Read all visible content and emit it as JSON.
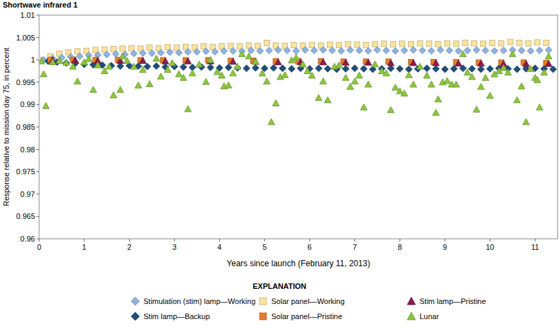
{
  "chart_data": {
    "type": "scatter",
    "title": "Shortwave infrared 1",
    "x_label": "Years since launch (February 11, 2013)",
    "y_label": "Response relative to mission day 75, in percent",
    "legend_title": "EXPLANATION",
    "legend": "bottom",
    "grid": false,
    "xlim": [
      0,
      11.5
    ],
    "xticks": [
      0,
      1,
      2,
      3,
      4,
      5,
      6,
      7,
      8,
      9,
      10,
      11
    ],
    "ylim": [
      0.96,
      1.01
    ],
    "yticks": [
      0.96,
      0.965,
      0.97,
      0.975,
      0.98,
      0.985,
      0.99,
      0.995,
      1,
      1.005,
      1.01
    ],
    "series": [
      {
        "name": "Stimulation (stim) lamp—Working",
        "color": "#8fb3e0",
        "marker": "diamond",
        "x": [
          0.1,
          0.3,
          0.5,
          0.7,
          0.9,
          1.1,
          1.3,
          1.5,
          1.7,
          1.9,
          2.1,
          2.3,
          2.5,
          2.7,
          2.9,
          3.1,
          3.3,
          3.5,
          3.7,
          3.9,
          4.1,
          4.3,
          4.5,
          4.7,
          4.9,
          5.1,
          5.3,
          5.5,
          5.7,
          5.9,
          6.1,
          6.3,
          6.5,
          6.7,
          6.9,
          7.1,
          7.3,
          7.5,
          7.7,
          7.9,
          8.1,
          8.3,
          8.5,
          8.7,
          8.9,
          9.1,
          9.3,
          9.5,
          9.7,
          9.9,
          10.1,
          10.3,
          10.5,
          10.7,
          10.9,
          11.1,
          11.3
        ],
        "values": [
          1.0,
          1.0003,
          1.0005,
          1.0007,
          1.0008,
          1.001,
          1.0011,
          1.0012,
          1.0013,
          1.0012,
          1.0014,
          1.0015,
          1.0015,
          1.0016,
          1.0017,
          1.0016,
          1.0018,
          1.0018,
          1.0019,
          1.0018,
          1.002,
          1.002,
          1.0019,
          1.0021,
          1.002,
          1.0021,
          1.0022,
          1.0021,
          1.002,
          1.0022,
          1.0021,
          1.0022,
          1.0021,
          1.002,
          1.0022,
          1.0021,
          1.002,
          1.0022,
          1.0021,
          1.002,
          1.0021,
          1.0022,
          1.0021,
          1.002,
          1.0022,
          1.0021,
          1.002,
          1.0021,
          1.0022,
          1.0021,
          1.002,
          1.0021,
          1.0022,
          1.0021,
          1.002,
          1.0021,
          1.0022
        ]
      },
      {
        "name": "Stim lamp—Backup",
        "color": "#1f4e79",
        "marker": "diamond",
        "x": [
          0.2,
          0.4,
          0.6,
          0.8,
          1.0,
          1.2,
          1.4,
          1.6,
          1.8,
          2.0,
          2.2,
          2.4,
          2.6,
          2.8,
          3.0,
          3.2,
          3.4,
          3.6,
          3.8,
          4.0,
          4.2,
          4.4,
          4.6,
          4.8,
          5.0,
          5.2,
          5.4,
          5.6,
          5.8,
          6.0,
          6.2,
          6.4,
          6.6,
          6.8,
          7.0,
          7.2,
          7.4,
          7.6,
          7.8,
          8.0,
          8.2,
          8.4,
          8.6,
          8.8,
          9.0,
          9.2,
          9.4,
          9.6,
          9.8,
          10.0,
          10.2,
          10.4,
          10.6,
          10.8,
          11.0,
          11.2,
          11.4
        ],
        "values": [
          0.9997,
          0.9995,
          0.9993,
          0.9992,
          0.999,
          0.9989,
          0.9988,
          0.9987,
          0.9986,
          0.9987,
          0.9986,
          0.9985,
          0.9986,
          0.9984,
          0.9985,
          0.9984,
          0.9983,
          0.9984,
          0.9983,
          0.9982,
          0.9983,
          0.9982,
          0.9981,
          0.9982,
          0.9981,
          0.9982,
          0.9981,
          0.998,
          0.9981,
          0.998,
          0.9981,
          0.998,
          0.9979,
          0.998,
          0.9981,
          0.998,
          0.9979,
          0.998,
          0.9981,
          0.998,
          0.9979,
          0.998,
          0.9981,
          0.998,
          0.9979,
          0.998,
          0.9981,
          0.998,
          0.9979,
          0.998,
          0.9981,
          0.998,
          0.9979,
          0.998,
          0.9981,
          0.998,
          0.9979
        ]
      },
      {
        "name": "Solar panel—Working",
        "color": "#fde49c",
        "marker": "square",
        "x": [
          0.05,
          0.25,
          0.45,
          0.65,
          0.85,
          1.05,
          1.25,
          1.45,
          1.65,
          1.85,
          2.05,
          2.25,
          2.45,
          2.65,
          2.85,
          3.05,
          3.25,
          3.45,
          3.65,
          3.85,
          4.05,
          4.25,
          4.45,
          4.65,
          4.85,
          5.05,
          5.25,
          5.45,
          5.65,
          5.85,
          6.05,
          6.25,
          6.45,
          6.65,
          6.85,
          7.05,
          7.25,
          7.45,
          7.65,
          7.85,
          8.05,
          8.25,
          8.45,
          8.65,
          8.85,
          9.05,
          9.25,
          9.45,
          9.65,
          9.85,
          10.05,
          10.25,
          10.45,
          10.65,
          10.85,
          11.05,
          11.25
        ],
        "values": [
          1.0,
          1.0008,
          1.0014,
          1.0017,
          1.0019,
          1.002,
          1.0022,
          1.0023,
          1.0024,
          1.0025,
          1.0026,
          1.0025,
          1.0027,
          1.0026,
          1.0028,
          1.0027,
          1.0029,
          1.0028,
          1.003,
          1.0029,
          1.003,
          1.0031,
          1.003,
          1.0032,
          1.0031,
          1.0038,
          1.0032,
          1.0031,
          1.0033,
          1.0032,
          1.0033,
          1.0032,
          1.0034,
          1.0033,
          1.0035,
          1.0034,
          1.0033,
          1.0035,
          1.0036,
          1.0035,
          1.0036,
          1.0035,
          1.0037,
          1.0036,
          1.0035,
          1.0037,
          1.0036,
          1.0038,
          1.0037,
          1.0036,
          1.0038,
          1.0037,
          1.004,
          1.0038,
          1.0037,
          1.0039,
          1.0038
        ]
      },
      {
        "name": "Solar panel—Pristine",
        "color": "#e87c2a",
        "marker": "square",
        "x": [
          0.25,
          0.75,
          1.25,
          1.75,
          2.25,
          2.75,
          3.25,
          3.75,
          4.25,
          4.75,
          5.25,
          5.75,
          6.25,
          6.75,
          7.25,
          7.75,
          8.25,
          8.75,
          9.25,
          9.75,
          10.25,
          10.75,
          11.25
        ],
        "values": [
          1.0,
          1.0,
          1.0,
          1.0,
          0.9999,
          0.9999,
          0.9999,
          0.9999,
          0.9998,
          0.9998,
          0.9997,
          0.9997,
          0.9997,
          0.9996,
          0.9996,
          0.9996,
          0.9995,
          0.9995,
          0.9995,
          0.9994,
          0.9994,
          0.9994,
          0.9993
        ]
      },
      {
        "name": "Stim lamp—Pristine",
        "color": "#8b1c4c",
        "marker": "triangle",
        "x": [
          0.3,
          0.8,
          1.3,
          1.8,
          2.3,
          2.8,
          3.3,
          3.8,
          4.3,
          4.8,
          5.3,
          5.8,
          6.3,
          6.8,
          7.3,
          7.8,
          8.3,
          8.8,
          9.3,
          9.8,
          10.3,
          10.8,
          11.3
        ],
        "values": [
          0.9999,
          0.9999,
          0.9998,
          0.9998,
          0.9998,
          0.9997,
          0.9997,
          0.9997,
          0.9996,
          0.9996,
          0.9995,
          0.9995,
          0.9995,
          0.9994,
          0.9994,
          0.9993,
          0.9993,
          0.9993,
          0.9992,
          0.9992,
          0.9991,
          0.9991,
          0.9991
        ]
      },
      {
        "name": "Lunar",
        "color": "#8cc63f",
        "marker": "triangle",
        "x": [
          0.05,
          0.1,
          0.15,
          0.3,
          0.45,
          0.6,
          0.75,
          0.85,
          1.0,
          1.1,
          1.2,
          1.3,
          1.45,
          1.55,
          1.65,
          1.8,
          1.85,
          1.95,
          2.1,
          2.2,
          2.3,
          2.45,
          2.6,
          2.7,
          2.85,
          2.95,
          3.1,
          3.2,
          3.3,
          3.4,
          3.55,
          3.7,
          3.8,
          3.95,
          4.05,
          4.1,
          4.2,
          4.3,
          4.4,
          4.5,
          4.65,
          4.8,
          4.95,
          5.05,
          5.15,
          5.25,
          5.35,
          5.45,
          5.6,
          5.7,
          5.85,
          5.95,
          6.05,
          6.2,
          6.3,
          6.4,
          6.55,
          6.65,
          6.8,
          6.9,
          7.0,
          7.1,
          7.2,
          7.3,
          7.45,
          7.6,
          7.7,
          7.8,
          7.9,
          8.0,
          8.1,
          8.2,
          8.3,
          8.45,
          8.6,
          8.7,
          8.8,
          8.85,
          8.95,
          9.05,
          9.15,
          9.25,
          9.4,
          9.5,
          9.6,
          9.7,
          9.8,
          9.9,
          10.0,
          10.1,
          10.2,
          10.3,
          10.4,
          10.5,
          10.6,
          10.7,
          10.8,
          10.9,
          11.0,
          11.05,
          11.1,
          11.2,
          11.3
        ],
        "values": [
          0.9997,
          0.9968,
          0.9897,
          0.9995,
          0.9998,
          0.9994,
          0.9985,
          0.9952,
          0.9995,
          1.0002,
          0.9933,
          0.9988,
          0.9975,
          0.9985,
          0.9921,
          0.9933,
          1.0008,
          0.9998,
          0.9985,
          0.9943,
          0.9978,
          0.9946,
          1.0003,
          0.9963,
          0.9978,
          0.9993,
          0.9968,
          0.996,
          0.989,
          0.997,
          0.999,
          0.9951,
          1.0,
          0.9973,
          0.9965,
          0.9941,
          0.9943,
          0.997,
          0.9985,
          1.0013,
          1.0008,
          0.9996,
          0.997,
          0.9952,
          0.9861,
          0.9903,
          0.9962,
          0.9966,
          0.9999,
          1.0005,
          0.999,
          0.9975,
          0.9965,
          0.9915,
          0.9952,
          0.991,
          0.9985,
          0.9988,
          0.996,
          0.994,
          0.9952,
          0.9965,
          0.9894,
          0.9945,
          0.999,
          0.9975,
          0.997,
          0.9888,
          0.9938,
          0.993,
          0.9925,
          0.9966,
          0.9945,
          0.9985,
          0.9965,
          0.9945,
          0.9882,
          0.9912,
          0.995,
          0.9953,
          0.9945,
          0.9945,
          1.0013,
          0.9972,
          0.9962,
          0.9889,
          0.994,
          0.996,
          0.992,
          0.9968,
          0.9975,
          0.9982,
          0.9972,
          1.0013,
          0.991,
          0.9941,
          0.9861,
          0.998,
          0.996,
          0.9955,
          0.9894,
          0.9972,
          1.0008
        ]
      }
    ]
  }
}
